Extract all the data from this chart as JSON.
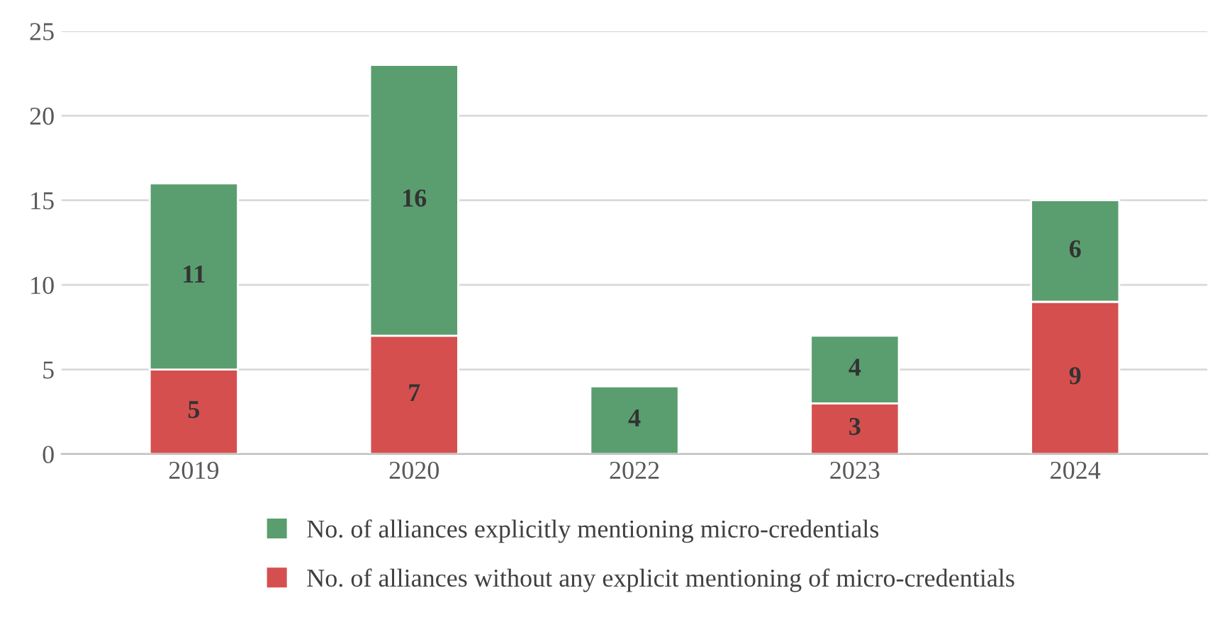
{
  "chart_data": {
    "type": "bar",
    "stacked": true,
    "categories": [
      "2019",
      "2020",
      "2022",
      "2023",
      "2024"
    ],
    "series": [
      {
        "name": "No. of alliances without any explicit mentioning of micro-credentials",
        "color": "#d64f4f",
        "values": [
          5,
          7,
          0,
          3,
          9
        ],
        "value_labels": [
          "5",
          "7",
          null,
          "3",
          "9"
        ]
      },
      {
        "name": "No. of alliances explicitly mentioning micro-credentials",
        "color": "#5a9e6f",
        "values": [
          11,
          16,
          4,
          4,
          6
        ],
        "value_labels": [
          "11",
          "16",
          "4",
          "4",
          "6"
        ]
      }
    ],
    "ylim": [
      0,
      25
    ],
    "yticks": [
      0,
      5,
      10,
      15,
      20,
      25
    ],
    "grid": "y",
    "legend": "bottom"
  }
}
